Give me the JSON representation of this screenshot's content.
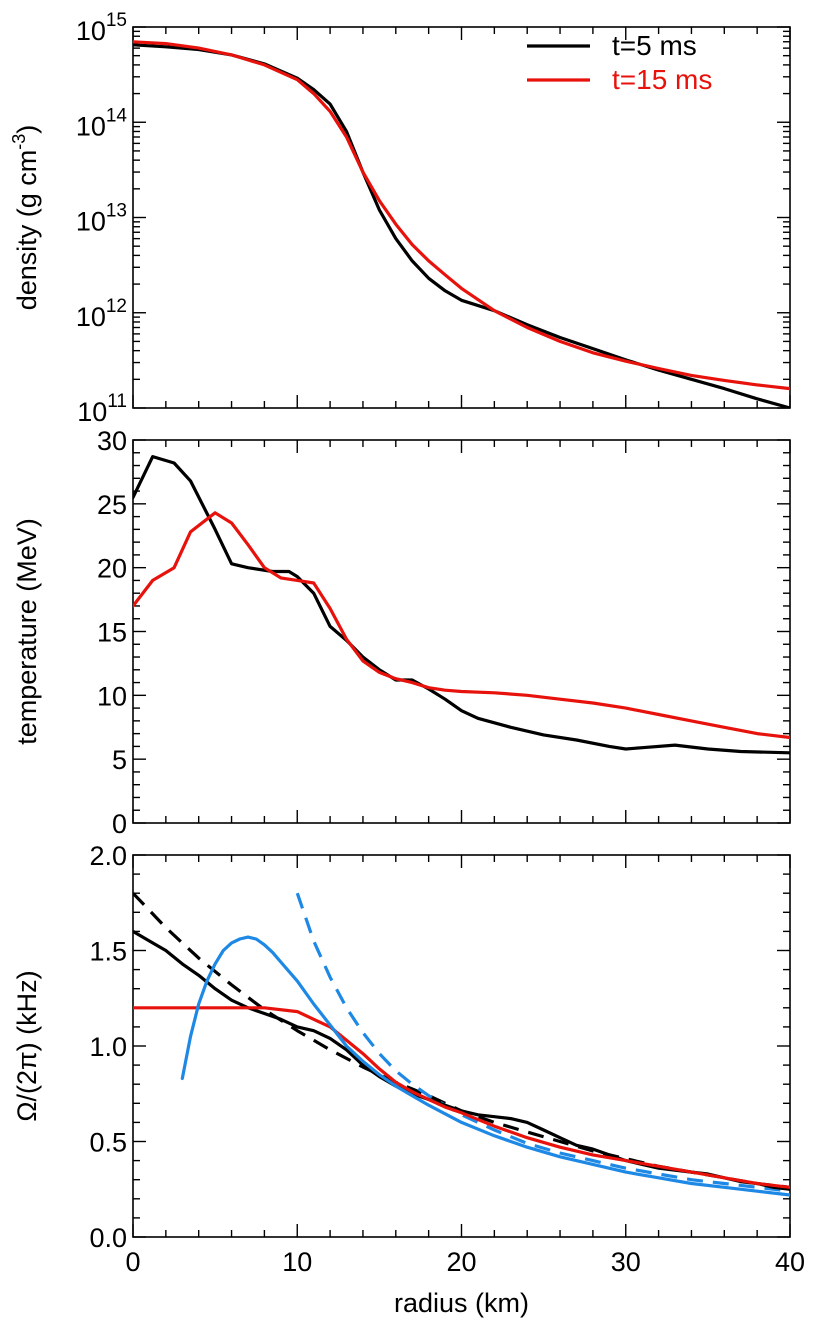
{
  "chart_data": [
    {
      "type": "line",
      "ylabel": "density (g cm-3)",
      "ylabel_parts": {
        "base": "density (g cm",
        "exp": "-3",
        "close": ")"
      },
      "yscale": "log",
      "xlim": [
        0,
        40
      ],
      "ylim": [
        100000000000.0,
        1000000000000000.0
      ],
      "xticks": [
        0,
        10,
        20,
        30,
        40
      ],
      "yticks": [
        100000000000.0,
        1000000000000.0,
        10000000000000.0,
        100000000000000.0,
        1000000000000000.0
      ],
      "ytick_labels": [
        {
          "base": "10",
          "exp": "11"
        },
        {
          "base": "10",
          "exp": "12"
        },
        {
          "base": "10",
          "exp": "13"
        },
        {
          "base": "10",
          "exp": "14"
        },
        {
          "base": "10",
          "exp": "15"
        }
      ],
      "legend": {
        "placement": "top-right",
        "entries": [
          {
            "label": "t=5 ms",
            "color": "#000000"
          },
          {
            "label": "t=15 ms",
            "color": "#e8120c"
          }
        ]
      },
      "series": [
        {
          "name": "t=5 ms",
          "color": "#000000",
          "dash": false,
          "x": [
            0,
            2,
            4,
            6,
            8,
            10,
            11,
            12,
            13,
            14,
            15,
            16,
            17,
            18,
            19,
            20,
            22,
            24,
            26,
            28,
            30,
            32,
            34,
            36,
            38,
            40
          ],
          "y": [
            650000000000000.0,
            620000000000000.0,
            580000000000000.0,
            510000000000000.0,
            410000000000000.0,
            290000000000000.0,
            220000000000000.0,
            155000000000000.0,
            80000000000000.0,
            30000000000000.0,
            12000000000000.0,
            6000000000000.0,
            3500000000000.0,
            2300000000000.0,
            1700000000000.0,
            1350000000000.0,
            1050000000000.0,
            750000000000.0,
            550000000000.0,
            420000000000.0,
            320000000000.0,
            250000000000.0,
            200000000000.0,
            160000000000.0,
            125000000000.0,
            100000000000.0
          ]
        },
        {
          "name": "t=15 ms",
          "color": "#e8120c",
          "dash": false,
          "x": [
            0,
            2,
            4,
            6,
            8,
            10,
            11,
            12,
            13,
            14,
            15,
            16,
            17,
            18,
            19,
            20,
            22,
            24,
            26,
            28,
            30,
            32,
            34,
            36,
            38,
            40
          ],
          "y": [
            700000000000000.0,
            670000000000000.0,
            600000000000000.0,
            510000000000000.0,
            400000000000000.0,
            280000000000000.0,
            200000000000000.0,
            130000000000000.0,
            70000000000000.0,
            30000000000000.0,
            15000000000000.0,
            8500000000000.0,
            5200000000000.0,
            3500000000000.0,
            2500000000000.0,
            1800000000000.0,
            1050000000000.0,
            700000000000.0,
            500000000000.0,
            380000000000.0,
            310000000000.0,
            260000000000.0,
            220000000000.0,
            195000000000.0,
            175000000000.0,
            160000000000.0
          ]
        }
      ]
    },
    {
      "type": "line",
      "ylabel": "temperature (MeV)",
      "xlim": [
        0,
        40
      ],
      "ylim": [
        0,
        30
      ],
      "xticks": [
        0,
        10,
        20,
        30,
        40
      ],
      "yticks": [
        0,
        5,
        10,
        15,
        20,
        25,
        30
      ],
      "ytick_labels": [
        "0",
        "5",
        "10",
        "15",
        "20",
        "25",
        "30"
      ],
      "series": [
        {
          "name": "t=5 ms",
          "color": "#000000",
          "dash": false,
          "x": [
            0,
            1.2,
            2.5,
            3.5,
            5,
            6,
            7,
            8.5,
            9.5,
            10,
            11,
            12,
            13,
            14,
            15,
            16,
            17,
            18,
            19,
            20,
            21,
            23,
            25,
            27,
            29,
            30,
            31,
            33,
            35,
            37,
            40
          ],
          "y": [
            25.5,
            28.7,
            28.2,
            26.8,
            23,
            20.3,
            20,
            19.7,
            19.7,
            19.3,
            18,
            15.4,
            14.3,
            13,
            12,
            11.2,
            11.2,
            10.5,
            9.7,
            8.8,
            8.2,
            7.5,
            6.9,
            6.5,
            6.0,
            5.8,
            5.9,
            6.1,
            5.8,
            5.6,
            5.5
          ]
        },
        {
          "name": "t=15 ms",
          "color": "#e8120c",
          "dash": false,
          "x": [
            0,
            1.2,
            2.5,
            3.5,
            5,
            6,
            7,
            8,
            9,
            10,
            11,
            12,
            13,
            14,
            15,
            16,
            17,
            18,
            19,
            20,
            22,
            24,
            26,
            28,
            30,
            32,
            34,
            36,
            38,
            40
          ],
          "y": [
            17,
            19,
            20,
            22.8,
            24.3,
            23.5,
            21.8,
            20,
            19.2,
            19,
            18.8,
            16.8,
            14.4,
            12.7,
            11.8,
            11.3,
            11,
            10.6,
            10.4,
            10.3,
            10.2,
            10.0,
            9.7,
            9.4,
            9.0,
            8.5,
            8.0,
            7.5,
            7.0,
            6.7
          ]
        }
      ]
    },
    {
      "type": "line",
      "xlabel": "radius (km)",
      "ylabel": "Ω/(2π) (kHz)",
      "xlim": [
        0,
        40
      ],
      "ylim": [
        0,
        2.0
      ],
      "xticks": [
        0,
        10,
        20,
        30,
        40
      ],
      "xtick_labels": [
        "0",
        "10",
        "20",
        "30",
        "40"
      ],
      "yticks": [
        0,
        0.5,
        1.0,
        1.5,
        2.0
      ],
      "ytick_labels": [
        "0.0",
        "0.5",
        "1.0",
        "1.5",
        "2.0"
      ],
      "series": [
        {
          "color": "#000000",
          "dash": true,
          "x": [
            0,
            2,
            4,
            6,
            8,
            10,
            12,
            14,
            16,
            18,
            20,
            22,
            24,
            26,
            28,
            30,
            32,
            34,
            36,
            38,
            40
          ],
          "y": [
            1.8,
            1.62,
            1.46,
            1.32,
            1.19,
            1.08,
            0.98,
            0.89,
            0.81,
            0.74,
            0.66,
            0.6,
            0.55,
            0.5,
            0.45,
            0.41,
            0.37,
            0.34,
            0.31,
            0.28,
            0.26
          ]
        },
        {
          "color": "#1e88e5",
          "dash": true,
          "x": [
            10,
            11,
            12,
            13,
            14,
            15,
            16,
            17,
            18,
            20,
            22,
            24,
            26,
            28,
            30,
            32,
            34,
            36,
            38,
            40
          ],
          "y": [
            1.8,
            1.55,
            1.36,
            1.2,
            1.07,
            0.96,
            0.87,
            0.8,
            0.74,
            0.64,
            0.56,
            0.49,
            0.44,
            0.4,
            0.36,
            0.33,
            0.3,
            0.28,
            0.26,
            0.24
          ]
        },
        {
          "name": "t=5 ms",
          "color": "#000000",
          "dash": false,
          "x": [
            0,
            1,
            2,
            3,
            4,
            5,
            6,
            7,
            8,
            9,
            10,
            11,
            12,
            13,
            14,
            15,
            16,
            17,
            18,
            19,
            20,
            21,
            22,
            23,
            24,
            25,
            26,
            27,
            28,
            29,
            30,
            31,
            32,
            33,
            34,
            35,
            36,
            37,
            38,
            39,
            40
          ],
          "y": [
            1.6,
            1.55,
            1.5,
            1.43,
            1.37,
            1.3,
            1.24,
            1.2,
            1.17,
            1.14,
            1.1,
            1.08,
            1.04,
            0.98,
            0.9,
            0.84,
            0.79,
            0.75,
            0.72,
            0.69,
            0.66,
            0.64,
            0.63,
            0.62,
            0.6,
            0.56,
            0.52,
            0.48,
            0.46,
            0.43,
            0.4,
            0.38,
            0.36,
            0.35,
            0.34,
            0.33,
            0.31,
            0.29,
            0.28,
            0.26,
            0.25
          ]
        },
        {
          "name": "t=15 ms",
          "color": "#e8120c",
          "dash": false,
          "x": [
            0,
            2,
            4,
            6,
            8,
            10,
            11,
            12,
            13,
            14,
            15,
            16,
            17,
            18,
            19,
            20,
            22,
            24,
            26,
            28,
            30,
            32,
            34,
            36,
            38,
            40
          ],
          "y": [
            1.2,
            1.2,
            1.2,
            1.2,
            1.2,
            1.18,
            1.14,
            1.1,
            1.03,
            0.96,
            0.88,
            0.81,
            0.76,
            0.72,
            0.68,
            0.65,
            0.58,
            0.52,
            0.47,
            0.43,
            0.4,
            0.37,
            0.34,
            0.31,
            0.28,
            0.26
          ]
        },
        {
          "color": "#1e88e5",
          "dash": false,
          "x": [
            3,
            3.5,
            4,
            4.5,
            5,
            5.5,
            6,
            6.5,
            7,
            7.5,
            8,
            8.5,
            9,
            10,
            11,
            12,
            13,
            14,
            15,
            16,
            17,
            18,
            20,
            22,
            24,
            26,
            28,
            30,
            32,
            34,
            36,
            38,
            40
          ],
          "y": [
            0.83,
            1.05,
            1.22,
            1.34,
            1.43,
            1.5,
            1.54,
            1.56,
            1.57,
            1.56,
            1.53,
            1.49,
            1.44,
            1.34,
            1.22,
            1.11,
            1.0,
            0.92,
            0.85,
            0.79,
            0.74,
            0.69,
            0.6,
            0.53,
            0.47,
            0.42,
            0.38,
            0.34,
            0.31,
            0.28,
            0.26,
            0.24,
            0.22
          ]
        }
      ]
    }
  ]
}
